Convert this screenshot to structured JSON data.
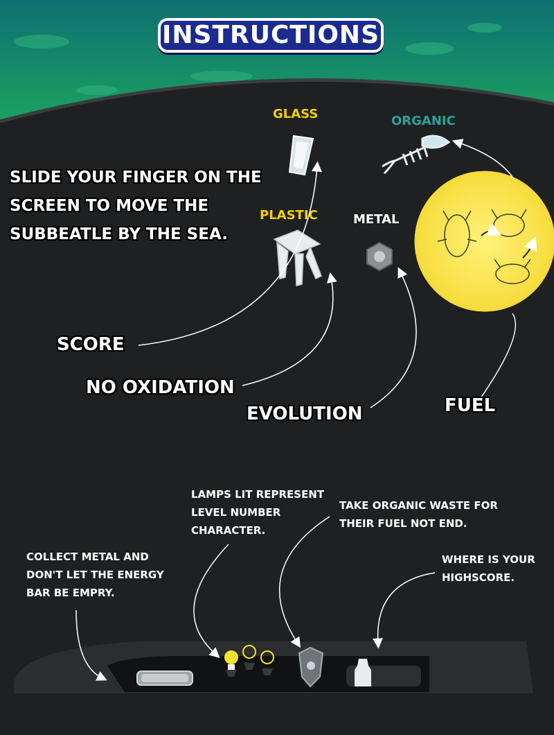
{
  "title": "INSTRUCTIONS",
  "intro": "SLIDE YOUR FINGER ON THE SCREEN TO MOVE THE SUBBEATLE BY THE SEA.",
  "categories": {
    "glass": {
      "label": "GLASS",
      "color": "#f5d000"
    },
    "organic": {
      "label": "ORGANIC",
      "color": "#2aa39a"
    },
    "plastic": {
      "label": "PLASTIC",
      "color": "#f5d000"
    },
    "metal": {
      "label": "METAL",
      "color": "#ffffff"
    }
  },
  "effects": {
    "score": "SCORE",
    "no_oxidation": "NO OXIDATION",
    "evolution": "EVOLUTION",
    "fuel": "FUEL"
  },
  "hud_notes": {
    "lamps": "LAMPS LIT REPRESENT LEVEL NUMBER CHARACTER.",
    "organic": "TAKE ORGANIC WASTE FOR THEIR FUEL NOT END.",
    "metal": "COLLECT METAL AND DON'T LET THE ENERGY BAR BE EMPRY.",
    "highscore": "WHERE IS YOUR HIGHSCORE."
  },
  "colors": {
    "background": "#1e2021",
    "sea": "#1a9d63",
    "title_bg": "#1c2b8e",
    "fuel_circle": "#fbe65a"
  }
}
